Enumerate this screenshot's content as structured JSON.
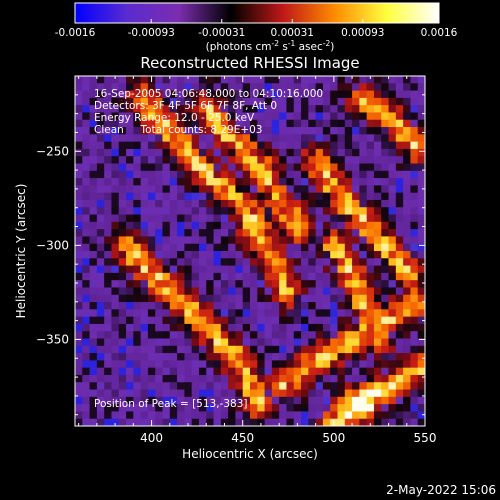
{
  "chart_data": {
    "type": "heatmap",
    "title": "Reconstructed RHESSI Image",
    "xlabel": "Heliocentric X (arcsec)",
    "ylabel": "Heliocentric Y (arcsec)",
    "xlim": [
      358,
      550
    ],
    "ylim": [
      -396,
      -210
    ],
    "x_ticks": [
      400,
      450,
      500,
      550
    ],
    "y_ticks": [
      -250,
      -300,
      -350
    ],
    "colorbar": {
      "label_main": "(photons cm",
      "label_sup1": "-2",
      "label_mid": " s",
      "label_sup2": "-1",
      "label_end": " asec",
      "label_sup3": "-2",
      "label_close": ")",
      "min": -0.0016,
      "max": 0.0016,
      "tick_labels": [
        "-0.0016",
        "-0.00093",
        "-0.00031",
        "0.00031",
        "0.00093",
        "0.0016"
      ],
      "tick_values": [
        -0.0016,
        -0.00093,
        -0.00031,
        0.00031,
        0.00093,
        0.0016
      ],
      "colors": [
        "#0000ff",
        "#5a2bd0",
        "#7b2dae",
        "#000000",
        "#c01818",
        "#ff8c00",
        "#ffff40",
        "#ffffff"
      ]
    },
    "annotations": [
      "16-Sep-2005 04:06:48.000 to 04:10:16.000",
      "Detectors: 3F 4F 5F 6F 7F 8F, Att 0",
      "Energy Range: 12.0 - 25.0 keV",
      "Clean     Total counts: 8.29E+03"
    ],
    "peak_label": "Position of Peak = [513,-383]",
    "bright_ridges": [
      {
        "x": [
          385,
          395,
          405,
          425,
          445,
          460
        ],
        "y": [
          -300,
          -310,
          -320,
          -338,
          -358,
          -385
        ]
      },
      {
        "x": [
          395,
          410,
          430,
          445,
          460
        ],
        "y": [
          -222,
          -240,
          -262,
          -275,
          -290
        ]
      },
      {
        "x": [
          430,
          440,
          460,
          470,
          482
        ],
        "y": [
          -225,
          -240,
          -258,
          -275,
          -292
        ]
      },
      {
        "x": [
          455,
          462,
          468,
          475
        ],
        "y": [
          -290,
          -300,
          -312,
          -325
        ]
      },
      {
        "x": [
          490,
          500,
          515,
          528,
          540
        ],
        "y": [
          -255,
          -270,
          -286,
          -300,
          -315
        ]
      },
      {
        "x": [
          500,
          510,
          518,
          525
        ],
        "y": [
          -300,
          -315,
          -335,
          -350
        ]
      },
      {
        "x": [
          470,
          490,
          510,
          530,
          545
        ],
        "y": [
          -375,
          -362,
          -350,
          -340,
          -330
        ]
      },
      {
        "x": [
          500,
          515,
          530,
          548
        ],
        "y": [
          -395,
          -385,
          -375,
          -365
        ]
      },
      {
        "x": [
          515,
          530,
          545
        ],
        "y": [
          -222,
          -232,
          -248
        ]
      }
    ],
    "peak": {
      "x": 513,
      "y": -383
    }
  },
  "footer": {
    "date": "2-May-2022 15:06"
  }
}
